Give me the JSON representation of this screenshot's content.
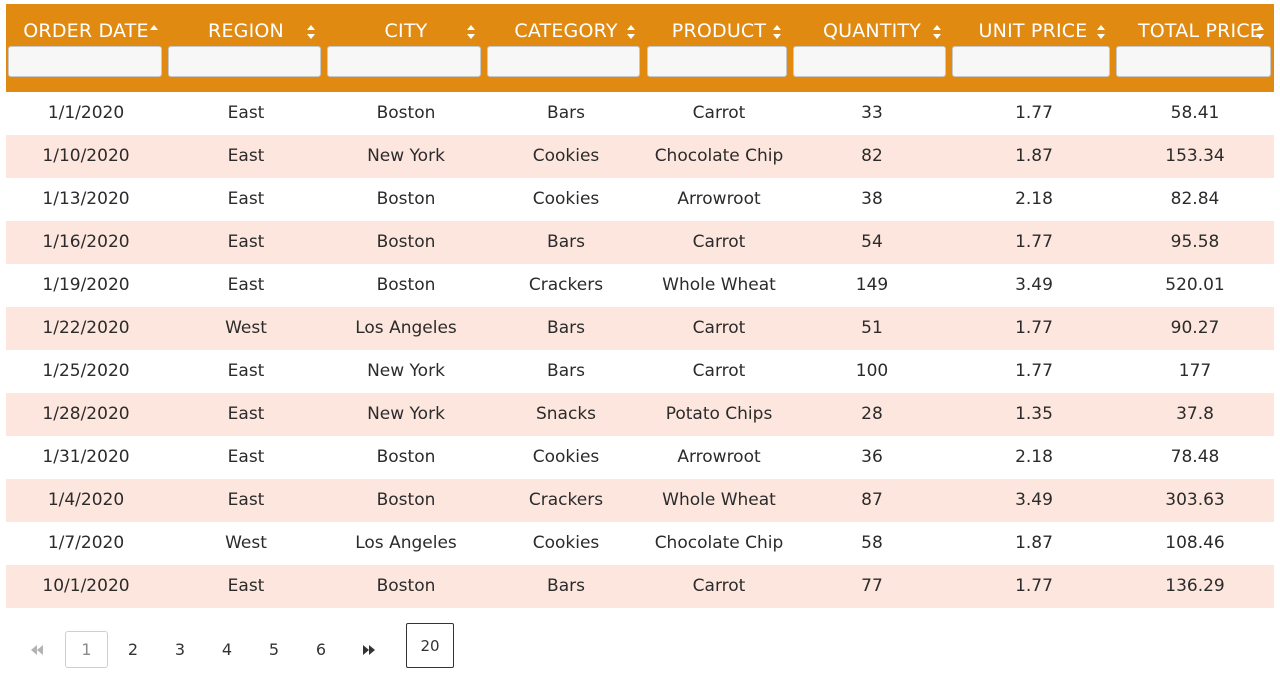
{
  "colors": {
    "header_bg": "#e08a12",
    "header_text": "#ffffff",
    "row_alt_bg": "#fde6de",
    "row_bg": "#ffffff"
  },
  "columns": [
    {
      "key": "order_date",
      "label": "ORDER DATE",
      "sort": "asc"
    },
    {
      "key": "region",
      "label": "REGION",
      "sort": "none"
    },
    {
      "key": "city",
      "label": "CITY",
      "sort": "none"
    },
    {
      "key": "category",
      "label": "CATEGORY",
      "sort": "none"
    },
    {
      "key": "product",
      "label": "PRODUCT",
      "sort": "none"
    },
    {
      "key": "quantity",
      "label": "QUANTITY",
      "sort": "none"
    },
    {
      "key": "unit_price",
      "label": "UNIT PRICE",
      "sort": "none"
    },
    {
      "key": "total_price",
      "label": "TOTAL PRICE",
      "sort": "none"
    }
  ],
  "filters": [
    "",
    "",
    "",
    "",
    "",
    "",
    "",
    ""
  ],
  "rows": [
    [
      "1/1/2020",
      "East",
      "Boston",
      "Bars",
      "Carrot",
      "33",
      "1.77",
      "58.41"
    ],
    [
      "1/10/2020",
      "East",
      "New York",
      "Cookies",
      "Chocolate Chip",
      "82",
      "1.87",
      "153.34"
    ],
    [
      "1/13/2020",
      "East",
      "Boston",
      "Cookies",
      "Arrowroot",
      "38",
      "2.18",
      "82.84"
    ],
    [
      "1/16/2020",
      "East",
      "Boston",
      "Bars",
      "Carrot",
      "54",
      "1.77",
      "95.58"
    ],
    [
      "1/19/2020",
      "East",
      "Boston",
      "Crackers",
      "Whole Wheat",
      "149",
      "3.49",
      "520.01"
    ],
    [
      "1/22/2020",
      "West",
      "Los Angeles",
      "Bars",
      "Carrot",
      "51",
      "1.77",
      "90.27"
    ],
    [
      "1/25/2020",
      "East",
      "New York",
      "Bars",
      "Carrot",
      "100",
      "1.77",
      "177"
    ],
    [
      "1/28/2020",
      "East",
      "New York",
      "Snacks",
      "Potato Chips",
      "28",
      "1.35",
      "37.8"
    ],
    [
      "1/31/2020",
      "East",
      "Boston",
      "Cookies",
      "Arrowroot",
      "36",
      "2.18",
      "78.48"
    ],
    [
      "1/4/2020",
      "East",
      "Boston",
      "Crackers",
      "Whole Wheat",
      "87",
      "3.49",
      "303.63"
    ],
    [
      "1/7/2020",
      "West",
      "Los Angeles",
      "Cookies",
      "Chocolate Chip",
      "58",
      "1.87",
      "108.46"
    ],
    [
      "10/1/2020",
      "East",
      "Boston",
      "Bars",
      "Carrot",
      "77",
      "1.77",
      "136.29"
    ]
  ],
  "pagination": {
    "first_icon": "double-chevron-left-icon",
    "last_icon": "double-chevron-right-icon",
    "pages": [
      "1",
      "2",
      "3",
      "4",
      "5",
      "6"
    ],
    "current_page": "1",
    "page_size": "20"
  }
}
